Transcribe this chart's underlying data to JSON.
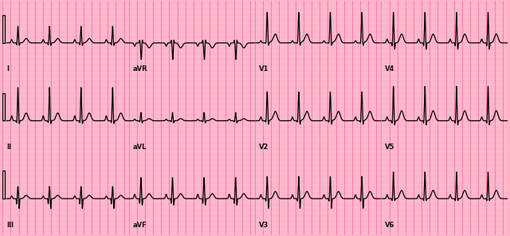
{
  "bg_color": "#FFB3C8",
  "grid_major_color": "#FF69A0",
  "grid_minor_color": "#FFC8D8",
  "line_color": "#000000",
  "line_width": 0.9,
  "fig_width": 6.4,
  "fig_height": 2.96,
  "dpi": 100,
  "rows": 3,
  "cols": 4,
  "labels": [
    [
      "I",
      "aVR",
      "V1",
      "V4"
    ],
    [
      "II",
      "aVL",
      "V2",
      "V5"
    ],
    [
      "III",
      "aVF",
      "V3",
      "V6"
    ]
  ]
}
